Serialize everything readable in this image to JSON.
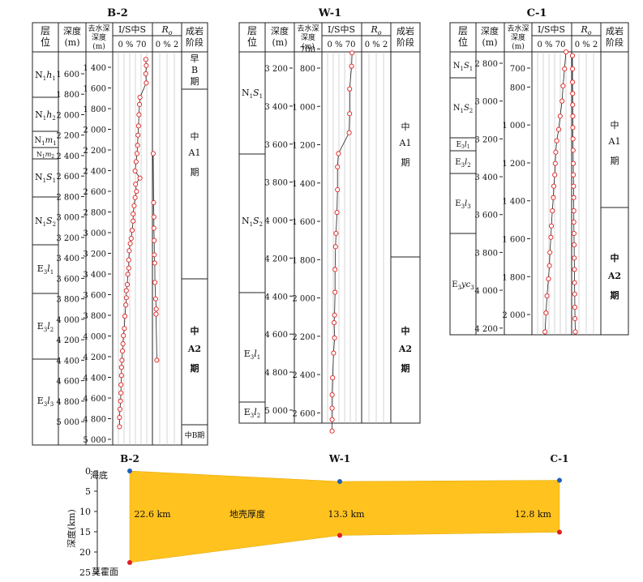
{
  "wells": [
    {
      "name": "B-2",
      "headers": {
        "layer": "层位",
        "depth": "深度(m)",
        "decomp": "去水深深度(m)",
        "is": "I/S中S",
        "is_scale": "0 % 70",
        "ro": "Ro",
        "ro_scale": "0 % 2",
        "stage": "成岩阶段"
      },
      "depth_ticks": [
        "1 600",
        "1 800",
        "2 000",
        "2 200",
        "2 400",
        "2 600",
        "2 800",
        "3 000",
        "3 200",
        "3 400",
        "3 600",
        "3 800",
        "4 000",
        "4 200",
        "4 400",
        "4 600",
        "4 800",
        "5 000"
      ],
      "decomp_ticks": [
        "1 400",
        "1 600",
        "1 800",
        "2 000",
        "2 200",
        "2 400",
        "2 600",
        "2 800",
        "3 000",
        "3 200",
        "3 400",
        "3 600",
        "3 800",
        "4 000",
        "4 200",
        "4 400",
        "4 600",
        "4 800",
        "5 000"
      ],
      "layers": [
        "N1h1",
        "N1h2",
        "N1m1",
        "N1m2",
        "N1S1",
        "N1S2",
        "E3l1",
        "E3l2",
        "E3l3"
      ],
      "stages": [
        "早B期",
        "中A1期",
        "中A2期",
        "中B期"
      ],
      "is_data": [
        {
          "depth": 1460,
          "value": 68
        },
        {
          "depth": 1520,
          "value": 69
        },
        {
          "depth": 1600,
          "value": 68
        },
        {
          "depth": 1690,
          "value": 69
        },
        {
          "depth": 1830,
          "value": 56
        },
        {
          "depth": 1900,
          "value": 55
        },
        {
          "depth": 2000,
          "value": 54
        },
        {
          "depth": 2110,
          "value": 53
        },
        {
          "depth": 2200,
          "value": 52
        },
        {
          "depth": 2300,
          "value": 51
        },
        {
          "depth": 2380,
          "value": 50
        },
        {
          "depth": 2460,
          "value": 48
        },
        {
          "depth": 2550,
          "value": 46
        },
        {
          "depth": 2620,
          "value": 56
        },
        {
          "depth": 2680,
          "value": 47
        },
        {
          "depth": 2750,
          "value": 49
        },
        {
          "depth": 2810,
          "value": 46
        },
        {
          "depth": 2890,
          "value": 44
        },
        {
          "depth": 2970,
          "value": 42
        },
        {
          "depth": 3040,
          "value": 42
        },
        {
          "depth": 3130,
          "value": 40
        },
        {
          "depth": 3210,
          "value": 38
        },
        {
          "depth": 3260,
          "value": 36
        },
        {
          "depth": 3330,
          "value": 34
        },
        {
          "depth": 3420,
          "value": 33
        },
        {
          "depth": 3500,
          "value": 33
        },
        {
          "depth": 3560,
          "value": 31
        },
        {
          "depth": 3660,
          "value": 30
        },
        {
          "depth": 3720,
          "value": 28
        },
        {
          "depth": 3790,
          "value": 28
        },
        {
          "depth": 3860,
          "value": 27
        },
        {
          "depth": 3970,
          "value": 25
        },
        {
          "depth": 4090,
          "value": 24
        },
        {
          "depth": 4160,
          "value": 22
        },
        {
          "depth": 4240,
          "value": 21
        },
        {
          "depth": 4310,
          "value": 20
        },
        {
          "depth": 4400,
          "value": 19
        },
        {
          "depth": 4470,
          "value": 18
        },
        {
          "depth": 4550,
          "value": 18
        },
        {
          "depth": 4640,
          "value": 17
        },
        {
          "depth": 4720,
          "value": 17
        },
        {
          "depth": 4800,
          "value": 16
        },
        {
          "depth": 4880,
          "value": 15
        },
        {
          "depth": 4960,
          "value": 14
        },
        {
          "depth": 5050,
          "value": 14
        }
      ],
      "ro_data": [
        {
          "depth": 2380,
          "value": 0.05
        },
        {
          "depth": 2860,
          "value": 0.08
        },
        {
          "depth": 3000,
          "value": 0.1
        },
        {
          "depth": 3110,
          "value": 0.1
        },
        {
          "depth": 3230,
          "value": 0.12
        },
        {
          "depth": 3370,
          "value": 0.13
        },
        {
          "depth": 3450,
          "value": 0.16
        },
        {
          "depth": 3640,
          "value": 0.17
        },
        {
          "depth": 3800,
          "value": 0.22
        },
        {
          "depth": 3900,
          "value": 0.26
        },
        {
          "depth": 3950,
          "value": 0.25
        },
        {
          "depth": 4400,
          "value": 0.3
        }
      ]
    },
    {
      "name": "W-1",
      "headers": {
        "layer": "层位",
        "depth": "深度(m)",
        "decomp": "去水深深度(m)",
        "is": "I/S中S",
        "is_scale": "0 % 70",
        "ro": "Ro",
        "ro_scale": "0 % 2",
        "stage": "成岩阶段"
      },
      "depth_ticks": [
        "3 200",
        "3 400",
        "3 600",
        "3 800",
        "4 000",
        "4 200",
        "4 400",
        "4 600",
        "4 800",
        "5 000"
      ],
      "decomp_ticks": [
        "700",
        "800",
        "1 000",
        "1 200",
        "1 400",
        "1 600",
        "1 800",
        "2 000",
        "2 200",
        "2 400",
        "2 600"
      ],
      "layers": [
        "N1S1",
        "N1S2",
        "E3l1",
        "E3l2"
      ],
      "stages": [
        "中A1期",
        "中A2期"
      ],
      "is_data": [
        {
          "depth": 3120,
          "value": 62
        },
        {
          "depth": 3190,
          "value": 61
        },
        {
          "depth": 3310,
          "value": 57
        },
        {
          "depth": 3440,
          "value": 57
        },
        {
          "depth": 3540,
          "value": 56
        },
        {
          "depth": 3650,
          "value": 34
        },
        {
          "depth": 3720,
          "value": 32
        },
        {
          "depth": 3840,
          "value": 32
        },
        {
          "depth": 3960,
          "value": 31
        },
        {
          "depth": 4070,
          "value": 29
        },
        {
          "depth": 4140,
          "value": 28
        },
        {
          "depth": 4260,
          "value": 27
        },
        {
          "depth": 4380,
          "value": 27
        },
        {
          "depth": 4500,
          "value": 26
        },
        {
          "depth": 4540,
          "value": 25
        },
        {
          "depth": 4620,
          "value": 26
        },
        {
          "depth": 4700,
          "value": 24
        },
        {
          "depth": 4830,
          "value": 22
        },
        {
          "depth": 4920,
          "value": 21
        },
        {
          "depth": 4990,
          "value": 21
        },
        {
          "depth": 5050,
          "value": 21
        },
        {
          "depth": 5110,
          "value": 21
        }
      ],
      "ro_data": []
    },
    {
      "name": "C-1",
      "headers": {
        "layer": "层位",
        "depth": "深度(m)",
        "decomp": "去水深深度(m)",
        "is": "I/S中S",
        "is_scale": "0 % 70",
        "ro": "Ro",
        "ro_scale": "0 % 2",
        "stage": "成岩阶段"
      },
      "depth_ticks": [
        "2 800",
        "3 000",
        "3 200",
        "3 400",
        "3 600",
        "3 800",
        "4 000",
        "4 200"
      ],
      "decomp_ticks": [
        "700",
        "800",
        "1 000",
        "1 200",
        "1 400",
        "1 600",
        "1 800",
        "2 000"
      ],
      "layers": [
        "N1S1",
        "N1S2",
        "E3l1",
        "E3l2",
        "E3l3",
        "E3yc3"
      ],
      "stages": [
        "中A1期",
        "中A2期"
      ],
      "is_data": [
        {
          "depth": 2740,
          "value": 70
        },
        {
          "depth": 2830,
          "value": 67
        },
        {
          "depth": 2920,
          "value": 64
        },
        {
          "depth": 3000,
          "value": 62
        },
        {
          "depth": 3080,
          "value": 58
        },
        {
          "depth": 3150,
          "value": 55
        },
        {
          "depth": 3210,
          "value": 51
        },
        {
          "depth": 3270,
          "value": 49
        },
        {
          "depth": 3330,
          "value": 48
        },
        {
          "depth": 3390,
          "value": 47
        },
        {
          "depth": 3450,
          "value": 45
        },
        {
          "depth": 3510,
          "value": 44
        },
        {
          "depth": 3580,
          "value": 42
        },
        {
          "depth": 3660,
          "value": 40
        },
        {
          "depth": 3720,
          "value": 39
        },
        {
          "depth": 3800,
          "value": 37
        },
        {
          "depth": 3870,
          "value": 36
        },
        {
          "depth": 3940,
          "value": 34
        },
        {
          "depth": 4030,
          "value": 31
        },
        {
          "depth": 4120,
          "value": 29
        },
        {
          "depth": 4220,
          "value": 27
        }
      ],
      "ro_data": [
        {
          "depth": 2760,
          "value": 0.05
        },
        {
          "depth": 2830,
          "value": 0.06
        },
        {
          "depth": 2900,
          "value": 0.06
        },
        {
          "depth": 2960,
          "value": 0.07
        },
        {
          "depth": 3020,
          "value": 0.07
        },
        {
          "depth": 3080,
          "value": 0.08
        },
        {
          "depth": 3140,
          "value": 0.08
        },
        {
          "depth": 3200,
          "value": 0.09
        },
        {
          "depth": 3260,
          "value": 0.1
        },
        {
          "depth": 3330,
          "value": 0.11
        },
        {
          "depth": 3390,
          "value": 0.12
        },
        {
          "depth": 3450,
          "value": 0.13
        },
        {
          "depth": 3510,
          "value": 0.14
        },
        {
          "depth": 3580,
          "value": 0.15
        },
        {
          "depth": 3640,
          "value": 0.15
        },
        {
          "depth": 3700,
          "value": 0.16
        },
        {
          "depth": 3760,
          "value": 0.17
        },
        {
          "depth": 3830,
          "value": 0.18
        },
        {
          "depth": 3890,
          "value": 0.19
        },
        {
          "depth": 3960,
          "value": 0.2
        },
        {
          "depth": 4020,
          "value": 0.21
        },
        {
          "depth": 4090,
          "value": 0.22
        },
        {
          "depth": 4150,
          "value": 0.23
        },
        {
          "depth": 4220,
          "value": 0.25
        }
      ]
    }
  ],
  "section": {
    "ylabel": "深度(km)",
    "yticks": [
      "0",
      "5",
      "10",
      "15",
      "20",
      "25"
    ],
    "seafloor_label": "海底",
    "moho_label": "莫霍面",
    "body_label": "地壳厚度",
    "fill_color": "#FFC21F",
    "wells": [
      {
        "name": "B-2",
        "thickness": "22.6 km",
        "top_km": 0,
        "bottom_km": 22.6
      },
      {
        "name": "W-1",
        "thickness": "13.3 km",
        "top_km": 2.6,
        "bottom_km": 15.9
      },
      {
        "name": "C-1",
        "thickness": "12.8 km",
        "top_km": 2.3,
        "bottom_km": 15.1
      }
    ]
  }
}
